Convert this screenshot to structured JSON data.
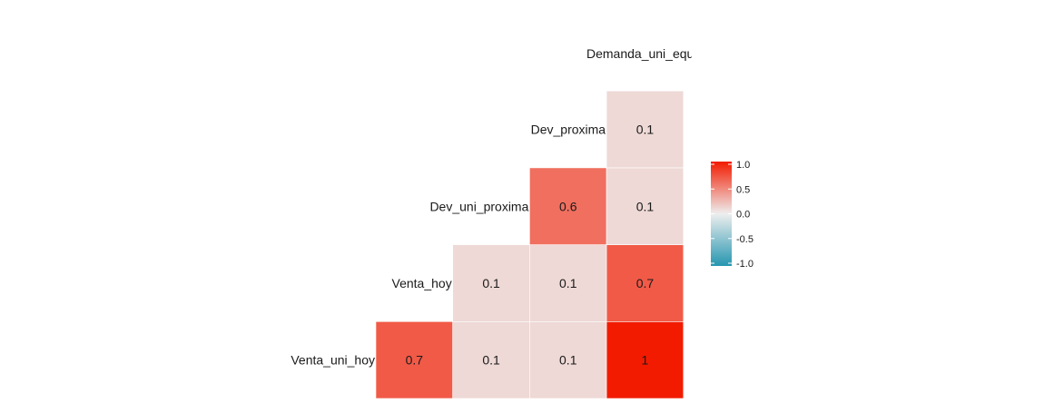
{
  "chart_data": {
    "type": "heatmap",
    "variables": [
      "Venta_uni_hoy",
      "Venta_hoy",
      "Dev_uni_proxima",
      "Dev_proxima",
      "Demanda_uni_equil"
    ],
    "variable_labels": [
      "Venta_uni_hoy",
      "Venta_hoy",
      "Dev_uni_proxima",
      "Dev_proxima",
      "Demanda_uni_equ"
    ],
    "cells": [
      {
        "row": "Venta_uni_hoy",
        "col": "Venta_hoy",
        "value": 0.7,
        "label": "0.7"
      },
      {
        "row": "Venta_uni_hoy",
        "col": "Dev_uni_proxima",
        "value": 0.1,
        "label": "0.1"
      },
      {
        "row": "Venta_uni_hoy",
        "col": "Dev_proxima",
        "value": 0.1,
        "label": "0.1"
      },
      {
        "row": "Venta_uni_hoy",
        "col": "Demanda_uni_equil",
        "value": 1.0,
        "label": "1"
      },
      {
        "row": "Venta_hoy",
        "col": "Dev_uni_proxima",
        "value": 0.1,
        "label": "0.1"
      },
      {
        "row": "Venta_hoy",
        "col": "Dev_proxima",
        "value": 0.1,
        "label": "0.1"
      },
      {
        "row": "Venta_hoy",
        "col": "Demanda_uni_equil",
        "value": 0.7,
        "label": "0.7"
      },
      {
        "row": "Dev_uni_proxima",
        "col": "Dev_proxima",
        "value": 0.6,
        "label": "0.6"
      },
      {
        "row": "Dev_uni_proxima",
        "col": "Demanda_uni_equil",
        "value": 0.1,
        "label": "0.1"
      },
      {
        "row": "Dev_proxima",
        "col": "Demanda_uni_equil",
        "value": 0.1,
        "label": "0.1"
      }
    ],
    "color_scale": {
      "low": "#2596b0",
      "mid": "#eeeeee",
      "high": "#f21b00",
      "limits": [
        -1.0,
        1.0
      ]
    },
    "legend": {
      "placement": "right",
      "ticks": [
        {
          "value": 1.0,
          "label": "1.0"
        },
        {
          "value": 0.5,
          "label": "0.5"
        },
        {
          "value": 0.0,
          "label": "0.0"
        },
        {
          "value": -0.5,
          "label": "-0.5"
        },
        {
          "value": -1.0,
          "label": "-1.0"
        }
      ]
    },
    "grid": false
  }
}
